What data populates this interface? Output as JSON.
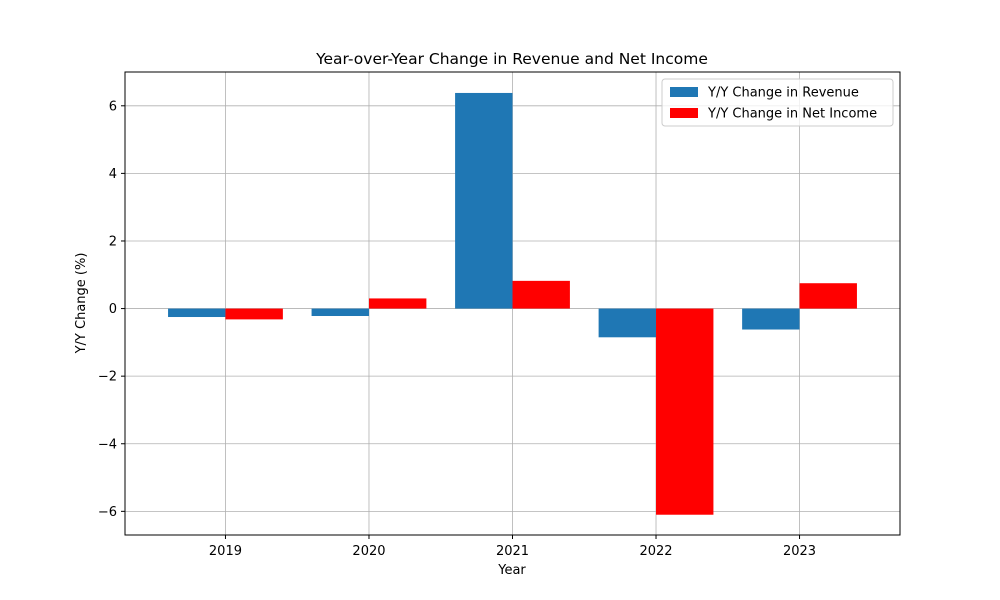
{
  "chart_data": {
    "type": "bar",
    "title": "Year-over-Year Change in Revenue and Net Income",
    "xlabel": "Year",
    "ylabel": "Y/Y Change (%)",
    "categories": [
      "2019",
      "2020",
      "2021",
      "2022",
      "2023"
    ],
    "series": [
      {
        "name": "Y/Y Change in Revenue",
        "color": "#1f77b4",
        "values": [
          -0.25,
          -0.22,
          6.38,
          -0.85,
          -0.62
        ]
      },
      {
        "name": "Y/Y Change in Net Income",
        "color": "#ff0000",
        "values": [
          -0.32,
          0.3,
          0.82,
          -6.1,
          0.75
        ]
      }
    ],
    "ylim": [
      -6.7,
      7.0
    ],
    "yticks": [
      -6,
      -4,
      -2,
      0,
      2,
      4,
      6
    ],
    "ytick_labels": [
      "−6",
      "−4",
      "−2",
      "0",
      "2",
      "4",
      "6"
    ],
    "grid": true,
    "legend_position": "top-right"
  }
}
